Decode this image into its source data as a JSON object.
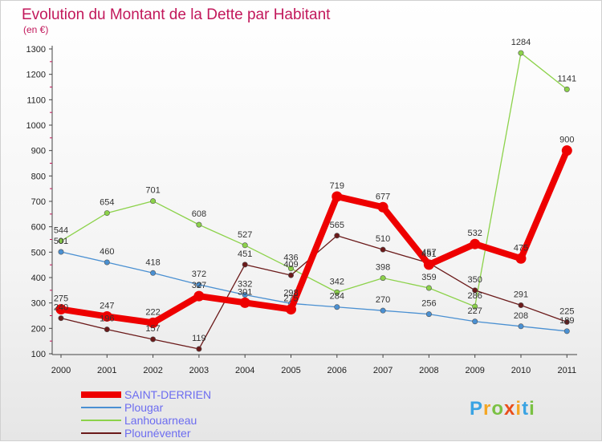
{
  "chart_data": {
    "type": "line",
    "title": "Evolution du Montant de la Dette par Habitant",
    "subtitle": "(en €)",
    "x": [
      "2000",
      "2001",
      "2002",
      "2003",
      "2004",
      "2005",
      "2006",
      "2007",
      "2008",
      "2009",
      "2010",
      "2011"
    ],
    "yticks": [
      "100",
      "200",
      "300",
      "400",
      "500",
      "600",
      "700",
      "800",
      "900",
      "1000",
      "1100",
      "1200",
      "1300"
    ],
    "ylim": [
      100,
      1300
    ],
    "grid": false,
    "legend_position": "bottom-left",
    "series": [
      {
        "name": "Lanhouarneau",
        "color": "#8cd24a",
        "values": [
          544,
          654,
          701,
          608,
          527,
          436,
          342,
          398,
          359,
          286,
          1284,
          1141
        ]
      },
      {
        "name": "Plougar",
        "color": "#4a90d2",
        "values": [
          501,
          460,
          418,
          372,
          332,
          298,
          284,
          270,
          256,
          227,
          208,
          189
        ]
      },
      {
        "name": "Plounéventer",
        "color": "#6b1a1a",
        "values": [
          240,
          196,
          157,
          119,
          451,
          409,
          565,
          510,
          457,
          350,
          291,
          225
        ]
      },
      {
        "name": "SAINT-DERRIEN",
        "color": "#ee0000",
        "values": [
          275,
          247,
          222,
          327,
          301,
          275,
          719,
          677,
          451,
          532,
          475,
          900
        ]
      }
    ],
    "legend": [
      "SAINT-DERRIEN",
      "Plougar",
      "Lanhouarneau",
      "Plounéventer"
    ]
  },
  "branding": {
    "letters": [
      "P",
      "r",
      "o",
      "x",
      "i",
      "t",
      "i"
    ],
    "colors": [
      "#3aa3e3",
      "#f5a623",
      "#7ac143",
      "#e94e1b",
      "#f5a623",
      "#3aa3e3",
      "#7ac143"
    ]
  }
}
